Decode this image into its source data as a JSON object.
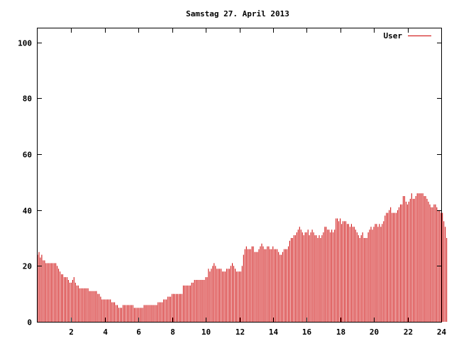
{
  "chart_data": {
    "type": "bar",
    "title": "Samstag 27. April 2013",
    "xlabel": "",
    "ylabel": "",
    "xlim": [
      0,
      24
    ],
    "ylim": [
      0,
      105
    ],
    "xticks": [
      2,
      4,
      6,
      8,
      10,
      12,
      14,
      16,
      18,
      20,
      22,
      24
    ],
    "yticks": [
      0,
      20,
      40,
      60,
      80,
      100
    ],
    "grid": false,
    "legend_position": "top-right",
    "color": "#cc0000",
    "series": [
      {
        "name": "User",
        "x_start": 0,
        "x_step": 0.0833,
        "values": [
          24,
          25,
          23,
          24,
          22,
          22,
          21,
          21,
          21,
          21,
          21,
          21,
          21,
          21,
          20,
          19,
          18,
          17,
          17,
          16,
          16,
          16,
          15,
          14,
          14,
          15,
          16,
          14,
          13,
          13,
          12,
          12,
          12,
          12,
          12,
          12,
          12,
          11,
          11,
          11,
          11,
          11,
          11,
          10,
          10,
          9,
          8,
          8,
          8,
          8,
          8,
          8,
          8,
          7,
          7,
          7,
          6,
          6,
          5,
          5,
          5,
          6,
          6,
          6,
          6,
          6,
          6,
          6,
          6,
          5,
          5,
          5,
          5,
          5,
          5,
          5,
          6,
          6,
          6,
          6,
          6,
          6,
          6,
          6,
          6,
          6,
          7,
          7,
          7,
          7,
          8,
          8,
          8,
          9,
          9,
          9,
          10,
          10,
          10,
          10,
          10,
          10,
          10,
          10,
          13,
          13,
          13,
          13,
          13,
          13,
          14,
          14,
          15,
          15,
          15,
          15,
          15,
          15,
          15,
          15,
          16,
          16,
          19,
          18,
          19,
          20,
          21,
          20,
          19,
          19,
          19,
          19,
          18,
          18,
          18,
          19,
          19,
          19,
          20,
          21,
          20,
          19,
          18,
          18,
          18,
          18,
          20,
          24,
          26,
          27,
          26,
          26,
          26,
          27,
          27,
          25,
          25,
          25,
          26,
          27,
          28,
          27,
          26,
          26,
          27,
          27,
          26,
          26,
          27,
          26,
          26,
          26,
          25,
          24,
          24,
          25,
          26,
          26,
          26,
          27,
          29,
          30,
          30,
          31,
          31,
          32,
          33,
          34,
          33,
          32,
          31,
          32,
          32,
          33,
          31,
          32,
          33,
          32,
          31,
          31,
          30,
          31,
          30,
          31,
          32,
          34,
          34,
          33,
          33,
          32,
          33,
          32,
          33,
          37,
          37,
          36,
          37,
          35,
          36,
          36,
          36,
          35,
          35,
          34,
          35,
          34,
          34,
          33,
          32,
          31,
          30,
          31,
          32,
          30,
          30,
          30,
          32,
          33,
          34,
          33,
          34,
          35,
          35,
          34,
          35,
          34,
          35,
          36,
          38,
          39,
          39,
          40,
          41,
          39,
          39,
          39,
          39,
          40,
          41,
          42,
          42,
          45,
          45,
          43,
          42,
          43,
          44,
          46,
          44,
          44,
          45,
          46,
          46,
          46,
          46,
          46,
          45,
          45,
          44,
          43,
          42,
          41,
          41,
          42,
          42,
          41,
          40,
          40,
          39,
          39,
          36,
          34,
          30
        ]
      }
    ]
  }
}
